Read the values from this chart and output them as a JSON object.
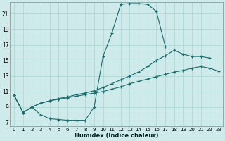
{
  "xlabel": "Humidex (Indice chaleur)",
  "background_color": "#ceeaea",
  "grid_color": "#aad4d4",
  "line_color": "#1a6b6b",
  "xlim": [
    -0.5,
    23.5
  ],
  "ylim": [
    6.5,
    22.5
  ],
  "xticks": [
    0,
    1,
    2,
    3,
    4,
    5,
    6,
    7,
    8,
    9,
    10,
    11,
    12,
    13,
    14,
    15,
    16,
    17,
    18,
    19,
    20,
    21,
    22,
    23
  ],
  "yticks": [
    7,
    9,
    11,
    13,
    15,
    17,
    19,
    21
  ],
  "curve1_x": [
    0,
    1,
    2,
    3,
    4,
    5,
    6,
    7,
    8,
    9,
    10,
    11,
    12,
    13,
    14,
    15,
    16,
    17
  ],
  "curve1_y": [
    10.5,
    8.3,
    9.0,
    8.0,
    7.5,
    7.4,
    7.3,
    7.3,
    7.3,
    9.0,
    15.5,
    18.5,
    22.2,
    22.3,
    22.3,
    22.2,
    21.3,
    16.8
  ],
  "curve2_x": [
    0,
    1,
    2,
    3,
    4,
    5,
    6,
    7,
    8,
    9,
    10,
    11,
    12,
    13,
    14,
    15,
    16,
    17,
    18,
    19,
    20,
    21,
    22
  ],
  "curve2_y": [
    10.5,
    8.3,
    9.0,
    9.5,
    9.8,
    10.1,
    10.3,
    10.6,
    10.8,
    11.1,
    11.5,
    12.0,
    12.5,
    13.0,
    13.5,
    14.2,
    15.0,
    15.6,
    16.3,
    15.8,
    15.5,
    15.5,
    15.3
  ],
  "curve3_x": [
    0,
    1,
    2,
    3,
    4,
    5,
    6,
    7,
    8,
    9,
    10,
    11,
    12,
    13,
    14,
    15,
    16,
    17,
    18,
    19,
    20,
    21,
    22,
    23
  ],
  "curve3_y": [
    10.5,
    8.3,
    9.0,
    9.5,
    9.8,
    10.0,
    10.2,
    10.4,
    10.6,
    10.8,
    11.0,
    11.3,
    11.6,
    12.0,
    12.3,
    12.6,
    12.9,
    13.2,
    13.5,
    13.7,
    14.0,
    14.2,
    14.0,
    13.6
  ]
}
